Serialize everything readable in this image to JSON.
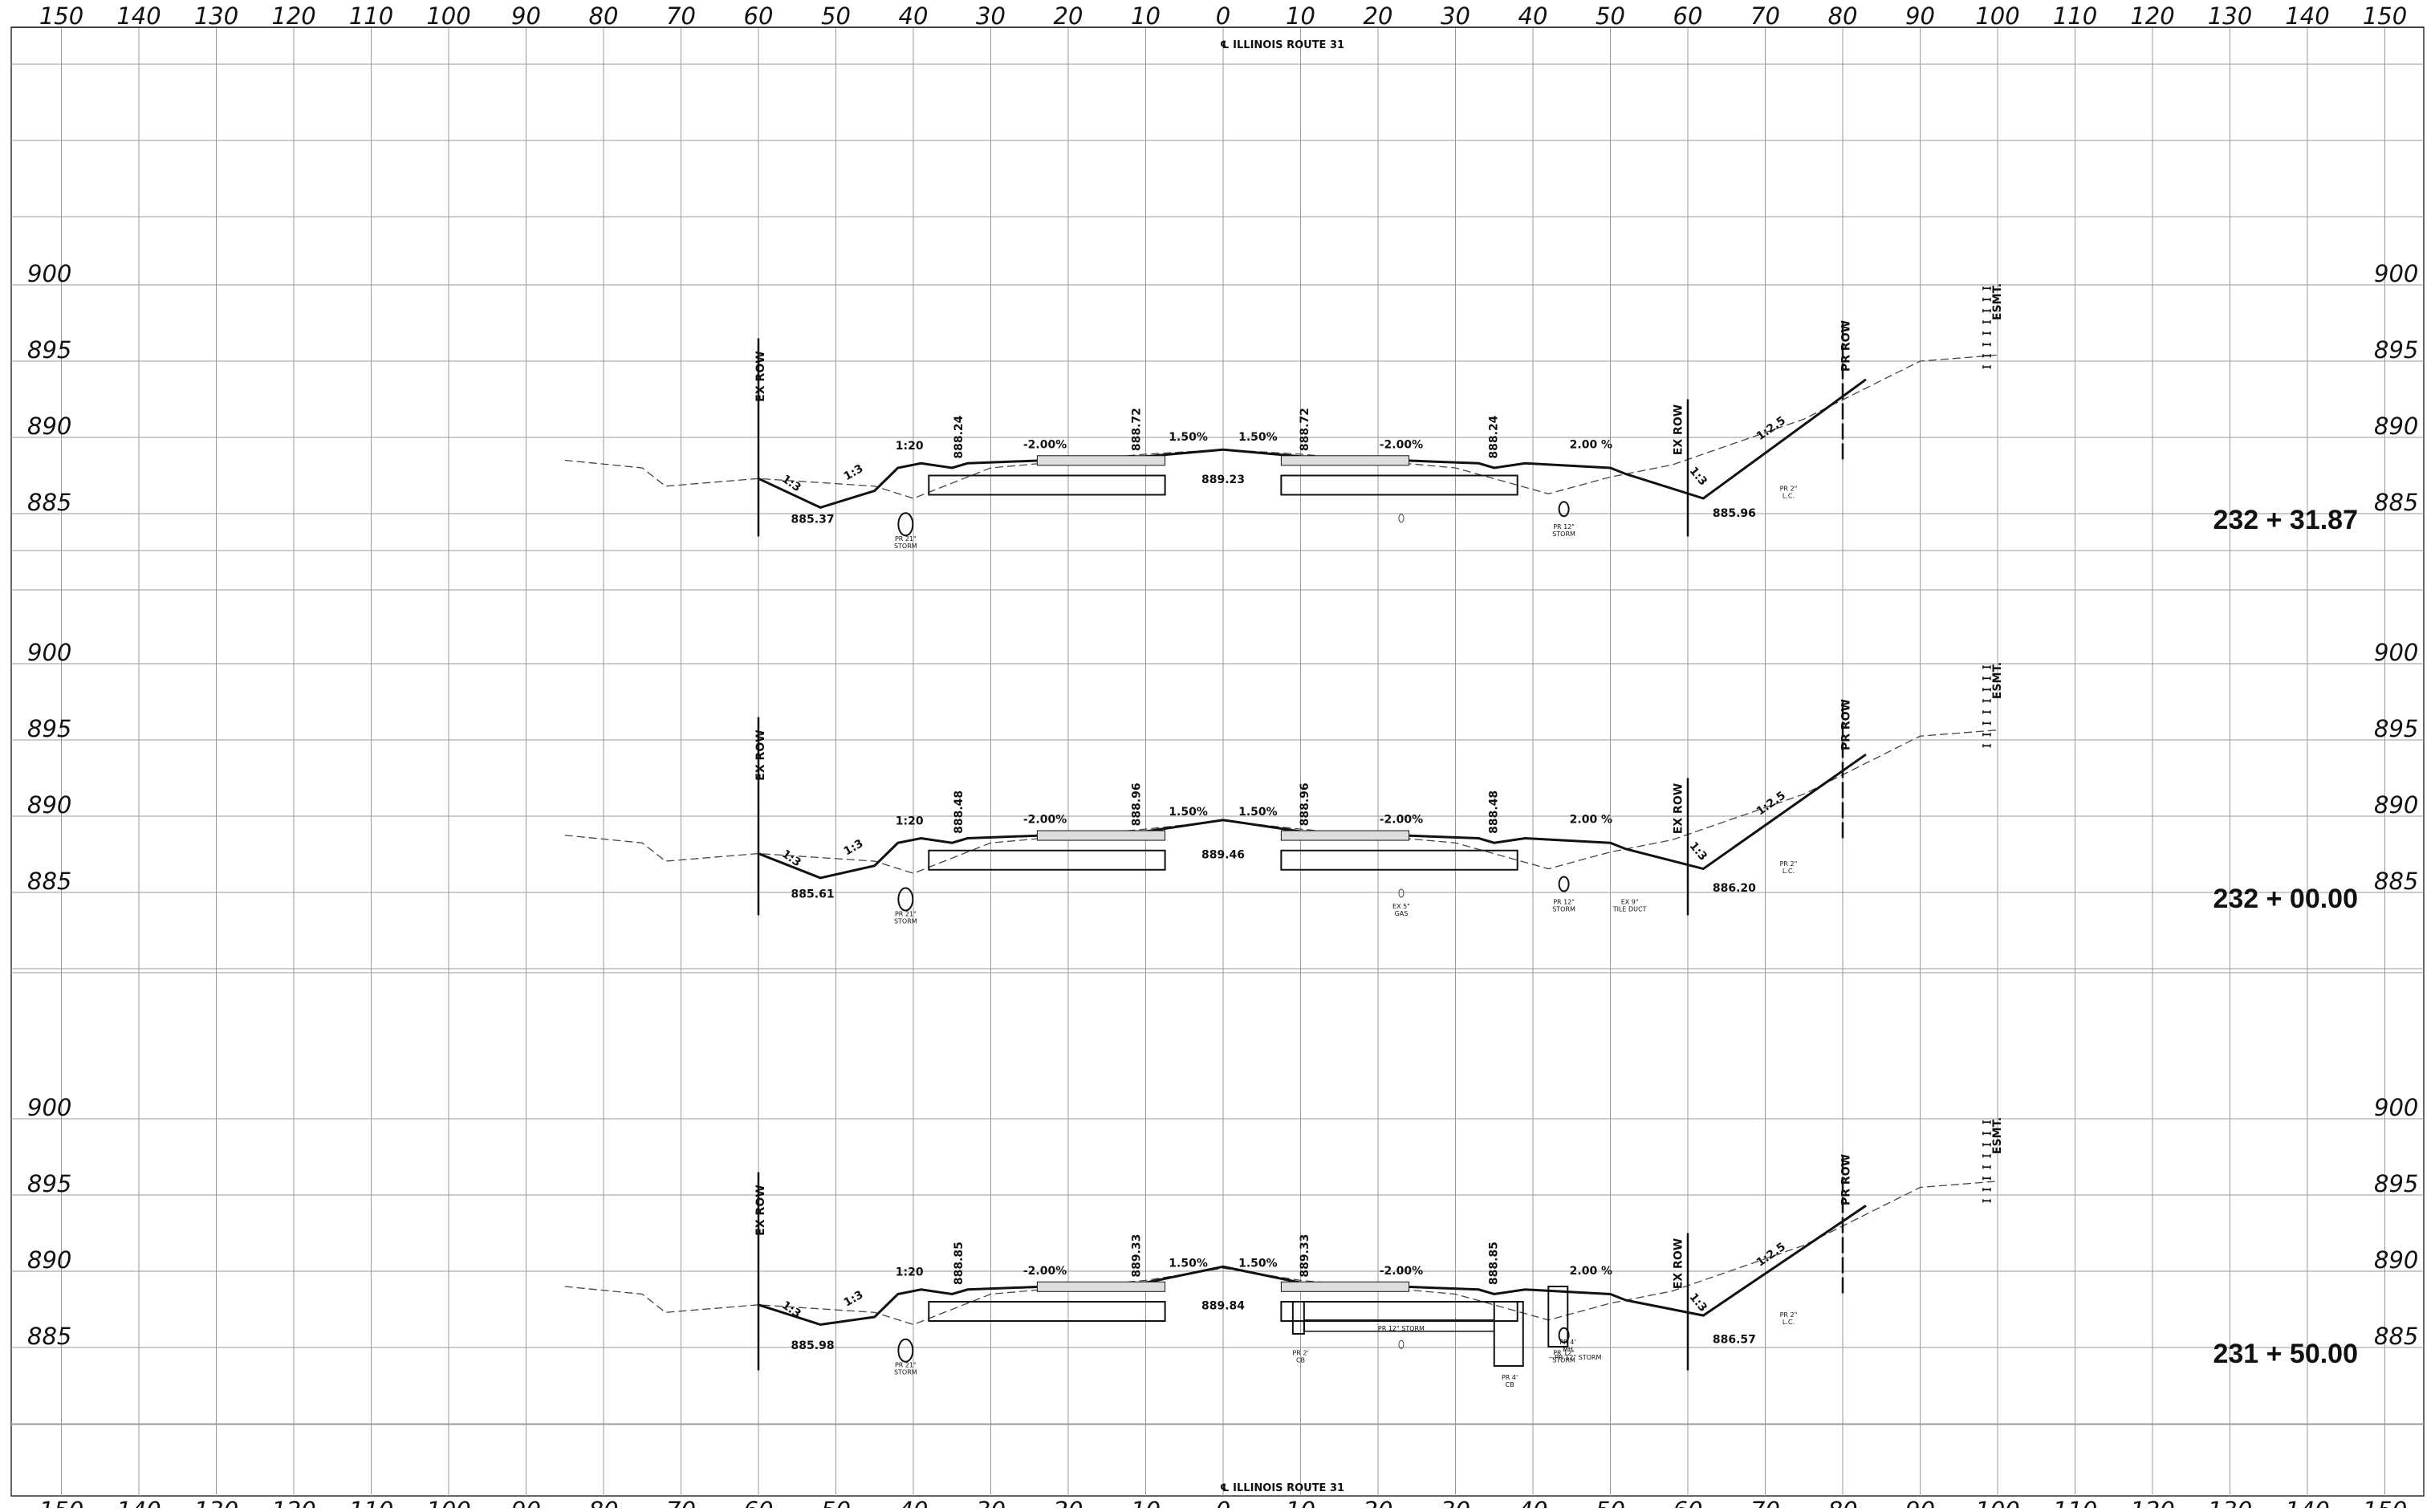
{
  "centerline_label": "℄ ILLINOIS ROUTE 31",
  "offsets": [
    "150",
    "140",
    "130",
    "120",
    "110",
    "100",
    "90",
    "80",
    "70",
    "60",
    "50",
    "40",
    "30",
    "20",
    "10",
    "0",
    "10",
    "20",
    "30",
    "40",
    "50",
    "60",
    "70",
    "80",
    "90",
    "100",
    "110",
    "120",
    "130",
    "140",
    "150"
  ],
  "elevation_labels": [
    "900",
    "895",
    "890",
    "885"
  ],
  "sections": [
    {
      "station": "232 + 31.87",
      "ditch_left_elev": "885.37",
      "ditch_right_elev": "885.96",
      "edge_left_elev": "888.24",
      "edge_right_elev": "888.24",
      "gutter_left_elev": "888.72",
      "gutter_right_elev": "888.72",
      "crown_elev": "889.23",
      "slope_left": "1:3",
      "slope_left2": "1:3",
      "slope_left3": "1:20",
      "slope_right": "1:3",
      "slope_right2": "1:2.5",
      "cross_left": "-2.00%",
      "cross_right": "-2.00%",
      "crown_left": "1.50%",
      "crown_right": "1.50%",
      "shoulder_right": "2.00 %",
      "ex_row_left": "EX ROW",
      "ex_row_right": "EX ROW",
      "pr_row": "PR ROW",
      "esmt": "ESMT.",
      "storm_left": "PR 21\" STORM",
      "storm_right": "PR 12\" STORM",
      "lc": "PR 2\" L.C.",
      "gas": "",
      "tile": ""
    },
    {
      "station": "232 + 00.00",
      "ditch_left_elev": "885.61",
      "ditch_right_elev": "886.20",
      "edge_left_elev": "888.48",
      "edge_right_elev": "888.48",
      "gutter_left_elev": "888.96",
      "gutter_right_elev": "888.96",
      "crown_elev": "889.46",
      "slope_left": "1:3",
      "slope_left2": "1:3",
      "slope_left3": "1:20",
      "slope_right": "1:3",
      "slope_right2": "1:2.5",
      "cross_left": "-2.00%",
      "cross_right": "-2.00%",
      "crown_left": "1.50%",
      "crown_right": "1.50%",
      "shoulder_right": "2.00 %",
      "ex_row_left": "EX ROW",
      "ex_row_right": "EX ROW",
      "pr_row": "PR ROW",
      "esmt": "ESMT.",
      "storm_left": "PR 21\" STORM",
      "storm_right": "PR 12\" STORM",
      "lc": "PR 2\" L.C.",
      "gas": "EX 5\" GAS",
      "tile": "EX 9\" TILE DUCT"
    },
    {
      "station": "231 + 50.00",
      "ditch_left_elev": "885.98",
      "ditch_right_elev": "886.57",
      "edge_left_elev": "888.85",
      "edge_right_elev": "888.85",
      "gutter_left_elev": "889.33",
      "gutter_right_elev": "889.33",
      "crown_elev": "889.84",
      "slope_left": "1:3",
      "slope_left2": "1:3",
      "slope_left3": "1:20",
      "slope_right": "1:3",
      "slope_right2": "1:2.5",
      "cross_left": "-2.00%",
      "cross_right": "-2.00%",
      "crown_left": "1.50%",
      "crown_right": "1.50%",
      "shoulder_right": "2.00 %",
      "ex_row_left": "EX ROW",
      "ex_row_right": "EX ROW",
      "pr_row": "PR ROW",
      "esmt": "ESMT.",
      "storm_left": "PR 21\" STORM",
      "storm_right": "PR 12\" STORM",
      "lc": "PR 2\" L.C.",
      "cb_left": "PR 2' CB",
      "cb_right": "PR 4' CB",
      "storm_mid": "PR 12\" STORM",
      "mh": "PR 4' MH",
      "storm_right2": "PR 12\" STORM"
    }
  ]
}
